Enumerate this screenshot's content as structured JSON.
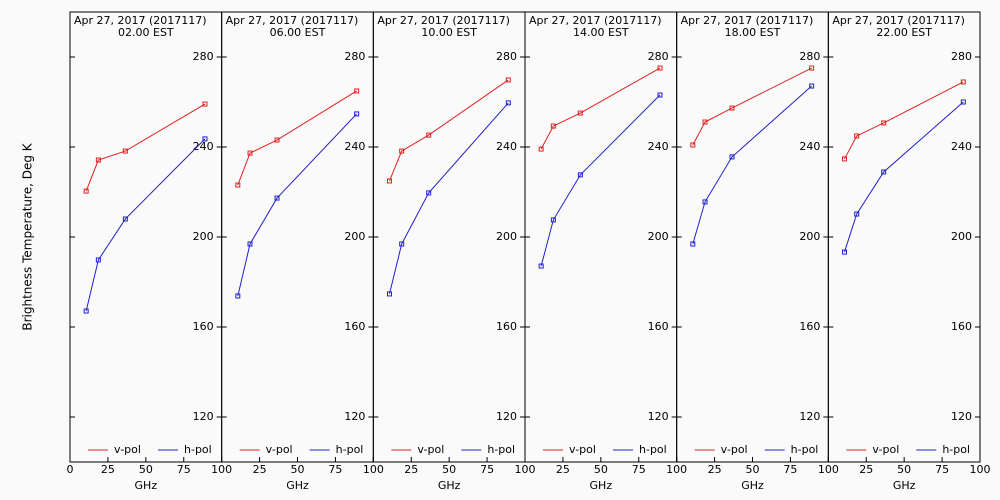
{
  "chart_data": [
    {
      "type": "line",
      "title": "Apr 27, 2017 (2017117)",
      "subtitle": "02.00 EST",
      "ylabel": "Brightness Temperature, Deg K",
      "xlabel": "GHz",
      "x": [
        10.65,
        18.7,
        36.5,
        89.0
      ],
      "xlim": [
        0,
        100
      ],
      "xticks": [
        0,
        25,
        50,
        75,
        100
      ],
      "ylim": [
        100,
        300
      ],
      "yticks": [
        120,
        160,
        200,
        240,
        280
      ],
      "series": [
        {
          "name": "v-pol",
          "color": "#e02020",
          "values": [
            220.4,
            234.2,
            238.2,
            259.1
          ]
        },
        {
          "name": "h-pol",
          "color": "#2020d0",
          "values": [
            167.1,
            189.8,
            208.0,
            243.6
          ]
        }
      ]
    },
    {
      "type": "line",
      "title": "Apr 27, 2017 (2017117)",
      "subtitle": "06.00 EST",
      "xlabel": "GHz",
      "x": [
        10.65,
        18.7,
        36.5,
        89.0
      ],
      "xlim": [
        0,
        100
      ],
      "xticks": [
        0,
        25,
        50,
        75,
        100
      ],
      "ylim": [
        100,
        300
      ],
      "yticks": [
        120,
        160,
        200,
        240,
        280
      ],
      "series": [
        {
          "name": "v-pol",
          "color": "#e02020",
          "values": [
            223.1,
            237.3,
            243.1,
            264.9
          ]
        },
        {
          "name": "h-pol",
          "color": "#2020d0",
          "values": [
            173.8,
            196.9,
            217.3,
            254.7
          ]
        }
      ]
    },
    {
      "type": "line",
      "title": "Apr 27, 2017 (2017117)",
      "subtitle": "10.00 EST",
      "xlabel": "GHz",
      "x": [
        10.65,
        18.7,
        36.5,
        89.0
      ],
      "xlim": [
        0,
        100
      ],
      "xticks": [
        0,
        25,
        50,
        75,
        100
      ],
      "ylim": [
        100,
        300
      ],
      "yticks": [
        120,
        160,
        200,
        240,
        280
      ],
      "series": [
        {
          "name": "v-pol",
          "color": "#e02020",
          "values": [
            224.9,
            238.2,
            245.3,
            269.8
          ]
        },
        {
          "name": "h-pol",
          "color": "#2020d0",
          "values": [
            174.7,
            196.9,
            219.6,
            259.6
          ]
        }
      ]
    },
    {
      "type": "line",
      "title": "Apr 27, 2017 (2017117)",
      "subtitle": "14.00 EST",
      "xlabel": "GHz",
      "x": [
        10.65,
        18.7,
        36.5,
        89.0
      ],
      "xlim": [
        0,
        100
      ],
      "xticks": [
        0,
        25,
        50,
        75,
        100
      ],
      "ylim": [
        100,
        300
      ],
      "yticks": [
        120,
        160,
        200,
        240,
        280
      ],
      "series": [
        {
          "name": "v-pol",
          "color": "#e02020",
          "values": [
            239.1,
            249.3,
            255.1,
            275.1
          ]
        },
        {
          "name": "h-pol",
          "color": "#2020d0",
          "values": [
            187.1,
            207.6,
            227.6,
            263.1
          ]
        }
      ]
    },
    {
      "type": "line",
      "title": "Apr 27, 2017 (2017117)",
      "subtitle": "18.00 EST",
      "xlabel": "GHz",
      "x": [
        10.65,
        18.7,
        36.5,
        89.0
      ],
      "xlim": [
        0,
        100
      ],
      "xticks": [
        0,
        25,
        50,
        75,
        100
      ],
      "ylim": [
        100,
        300
      ],
      "yticks": [
        120,
        160,
        200,
        240,
        280
      ],
      "series": [
        {
          "name": "v-pol",
          "color": "#e02020",
          "values": [
            240.9,
            251.1,
            257.3,
            275.1
          ]
        },
        {
          "name": "h-pol",
          "color": "#2020d0",
          "values": [
            196.9,
            215.6,
            235.6,
            267.1
          ]
        }
      ]
    },
    {
      "type": "line",
      "title": "Apr 27, 2017 (2017117)",
      "subtitle": "22.00 EST",
      "xlabel": "GHz",
      "x": [
        10.65,
        18.7,
        36.5,
        89.0
      ],
      "xlim": [
        0,
        100
      ],
      "xticks": [
        0,
        25,
        50,
        75,
        100
      ],
      "ylim": [
        100,
        300
      ],
      "yticks": [
        120,
        160,
        200,
        240,
        280
      ],
      "series": [
        {
          "name": "v-pol",
          "color": "#e02020",
          "values": [
            234.7,
            244.9,
            250.7,
            268.9
          ]
        },
        {
          "name": "h-pol",
          "color": "#2020d0",
          "values": [
            193.3,
            210.2,
            228.9,
            260.0
          ]
        }
      ]
    }
  ]
}
